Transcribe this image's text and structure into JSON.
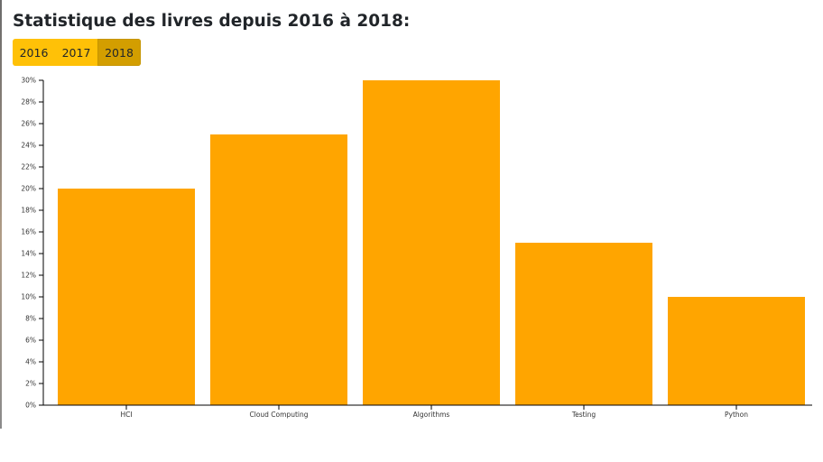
{
  "page": {
    "title": "Statistique des livres depuis 2016 à 2018:"
  },
  "years": {
    "buttons": [
      {
        "label": "2016",
        "active": false
      },
      {
        "label": "2017",
        "active": false
      },
      {
        "label": "2018",
        "active": true
      }
    ]
  },
  "colors": {
    "bar": "#ffa500",
    "button": "#ffc107",
    "button_active": "#d39e00",
    "axis": "#000000"
  },
  "chart_data": {
    "type": "bar",
    "categories": [
      "HCI",
      "Cloud Computing",
      "Algorithms",
      "Testing",
      "Python"
    ],
    "values": [
      20,
      25,
      30,
      15,
      10
    ],
    "ylim": [
      0,
      30
    ],
    "yticks": [
      0,
      2,
      4,
      6,
      8,
      10,
      12,
      14,
      16,
      18,
      20,
      22,
      24,
      26,
      28,
      30
    ],
    "ytick_labels": [
      "0%",
      "2%",
      "4%",
      "6%",
      "8%",
      "10%",
      "12%",
      "14%",
      "16%",
      "18%",
      "20%",
      "22%",
      "24%",
      "26%",
      "28%",
      "30%"
    ],
    "xlabel": "",
    "ylabel": "",
    "grid": false,
    "legend": "none"
  }
}
